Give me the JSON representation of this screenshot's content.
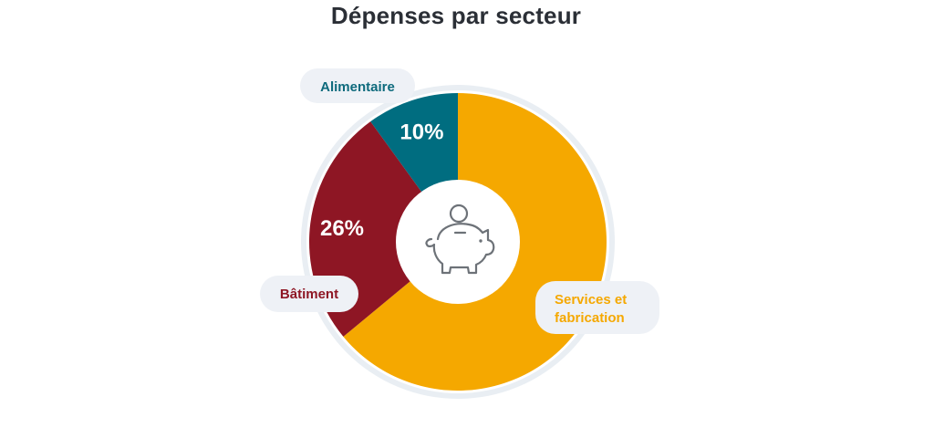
{
  "title": "Dépenses par secteur",
  "chart_data": {
    "type": "pie",
    "title": "Dépenses par secteur",
    "categories": [
      "Services et fabrication",
      "Bâtiment",
      "Alimentaire"
    ],
    "values": [
      64,
      26,
      10
    ],
    "unit": "%",
    "labels": [
      "64%",
      "26%",
      "10%"
    ],
    "colors": [
      "#F5A800",
      "#8E1624",
      "#006D80"
    ],
    "center_icon": "piggy-bank-icon"
  },
  "legend_pills": {
    "services_line1": "Services et",
    "services_line2": "fabrication",
    "batiment": "Bâtiment",
    "alimentaire": "Alimentaire"
  }
}
